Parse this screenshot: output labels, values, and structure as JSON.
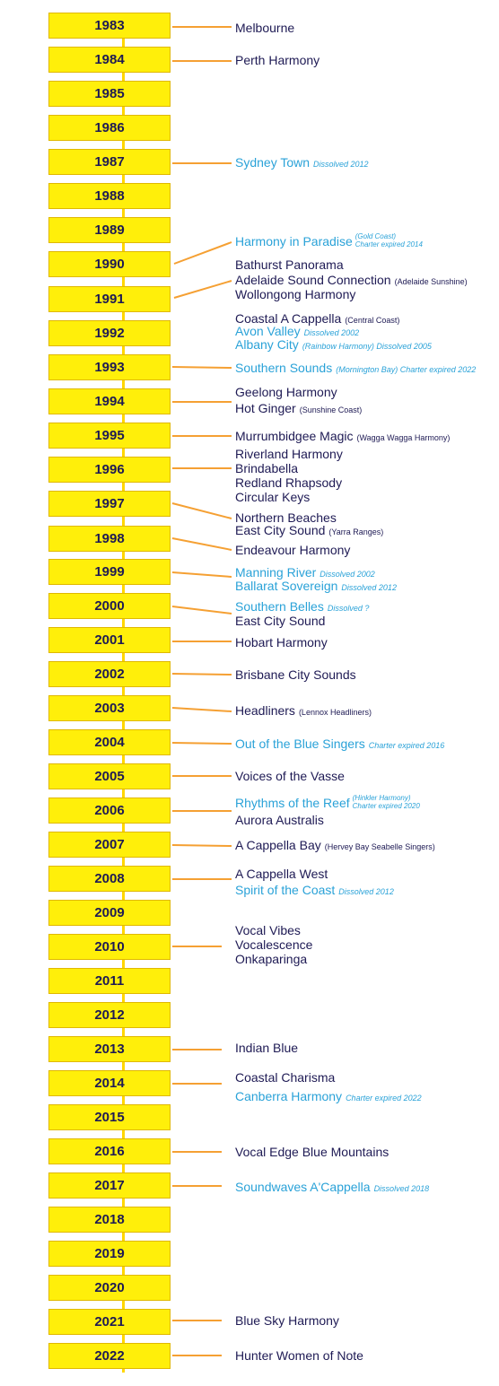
{
  "colors": {
    "year_fill": "#ffef0a",
    "year_text": "#1e1a54",
    "connector": "#f5a033",
    "active_club": "#1e1a54",
    "former_club": "#2aa2d8"
  },
  "years": [
    "1983",
    "1984",
    "1985",
    "1986",
    "1987",
    "1988",
    "1989",
    "1990",
    "1991",
    "1992",
    "1993",
    "1994",
    "1995",
    "1996",
    "1997",
    "1998",
    "1999",
    "2000",
    "2001",
    "2002",
    "2003",
    "2004",
    "2005",
    "2006",
    "2007",
    "2008",
    "2009",
    "2010",
    "2011",
    "2012",
    "2013",
    "2014",
    "2015",
    "2016",
    "2017",
    "2018",
    "2019",
    "2020",
    "2021",
    "2022"
  ],
  "clubs": [
    {
      "name": "Melbourne",
      "note": "",
      "status": "active"
    },
    {
      "name": "Perth Harmony",
      "note": "",
      "status": "active"
    },
    {
      "name": "Sydney Town",
      "note": "Dissolved 2012",
      "status": "former"
    },
    {
      "name": "Harmony in Paradise",
      "note_line1": "(Gold Coast)",
      "note_line2": "Charter expired 2014",
      "status": "former"
    },
    {
      "name": "Bathurst Panorama",
      "note": "",
      "status": "active"
    },
    {
      "name": "Adelaide Sound Connection",
      "note": "(Adelaide Sunshine)",
      "status": "active"
    },
    {
      "name": "Wollongong Harmony",
      "note": "",
      "status": "active"
    },
    {
      "name": "Coastal A Cappella",
      "note": "(Central Coast)",
      "status": "active"
    },
    {
      "name": "Avon Valley",
      "note": "Dissolved 2002",
      "status": "former"
    },
    {
      "name": "Albany City",
      "note": "(Rainbow Harmony) Dissolved 2005",
      "status": "former"
    },
    {
      "name": "Southern Sounds",
      "note": "(Mornington Bay) Charter expired 2022",
      "status": "former"
    },
    {
      "name": "Geelong Harmony",
      "note": "",
      "status": "active"
    },
    {
      "name": "Hot Ginger",
      "note": "(Sunshine Coast)",
      "status": "active"
    },
    {
      "name": "Murrumbidgee Magic",
      "note": "(Wagga Wagga Harmony)",
      "status": "active"
    },
    {
      "name": "Riverland Harmony",
      "note": "",
      "status": "active"
    },
    {
      "name": "Brindabella",
      "note": "",
      "status": "active"
    },
    {
      "name": "Redland Rhapsody",
      "note": "",
      "status": "active"
    },
    {
      "name": "Circular Keys",
      "note": "",
      "status": "active"
    },
    {
      "name": "Northern Beaches",
      "note": "",
      "status": "active"
    },
    {
      "name": "East City Sound",
      "note": "(Yarra Ranges)",
      "status": "active"
    },
    {
      "name": "Endeavour Harmony",
      "note": "",
      "status": "active"
    },
    {
      "name": "Manning River",
      "note": "Dissolved 2002",
      "status": "former"
    },
    {
      "name": "Ballarat Sovereign",
      "note": "Dissolved 2012",
      "status": "former"
    },
    {
      "name": "Southern Belles",
      "note": "Dissolved ?",
      "status": "former"
    },
    {
      "name": "East City Sound",
      "note": "",
      "status": "active"
    },
    {
      "name": "Hobart Harmony",
      "note": "",
      "status": "active"
    },
    {
      "name": "Brisbane City Sounds",
      "note": "",
      "status": "active"
    },
    {
      "name": "Headliners",
      "note": "(Lennox Headliners)",
      "status": "active"
    },
    {
      "name": "Out of the Blue Singers",
      "note": "Charter expired 2016",
      "status": "former"
    },
    {
      "name": "Voices of the Vasse",
      "note": "",
      "status": "active"
    },
    {
      "name": "Rhythms of the Reef",
      "note_line1": "(Hinkler Harmony)",
      "note_line2": "Charter expired 2020",
      "status": "former"
    },
    {
      "name": "Aurora Australis",
      "note": "",
      "status": "active"
    },
    {
      "name": "A Cappella Bay",
      "note": "(Hervey Bay Seabelle Singers)",
      "status": "active"
    },
    {
      "name": "A Cappella West",
      "note": "",
      "status": "active"
    },
    {
      "name": "Spirit of the Coast",
      "note": "Dissolved 2012",
      "status": "former"
    },
    {
      "name": "Vocal Vibes",
      "note": "",
      "status": "active"
    },
    {
      "name": "Vocalescence",
      "note": "",
      "status": "active"
    },
    {
      "name": "Onkaparinga",
      "note": "",
      "status": "active"
    },
    {
      "name": "Indian Blue",
      "note": "",
      "status": "active"
    },
    {
      "name": "Coastal Charisma",
      "note": "",
      "status": "active"
    },
    {
      "name": "Canberra Harmony",
      "note": "Charter expired 2022",
      "status": "former"
    },
    {
      "name": "Vocal Edge Blue Mountains",
      "note": "",
      "status": "active"
    },
    {
      "name": "Soundwaves A'Cappella",
      "note": "Dissolved 2018",
      "status": "former"
    },
    {
      "name": "Blue Sky Harmony",
      "note": "",
      "status": "active"
    },
    {
      "name": "Hunter Women of Note",
      "note": "",
      "status": "active"
    }
  ]
}
